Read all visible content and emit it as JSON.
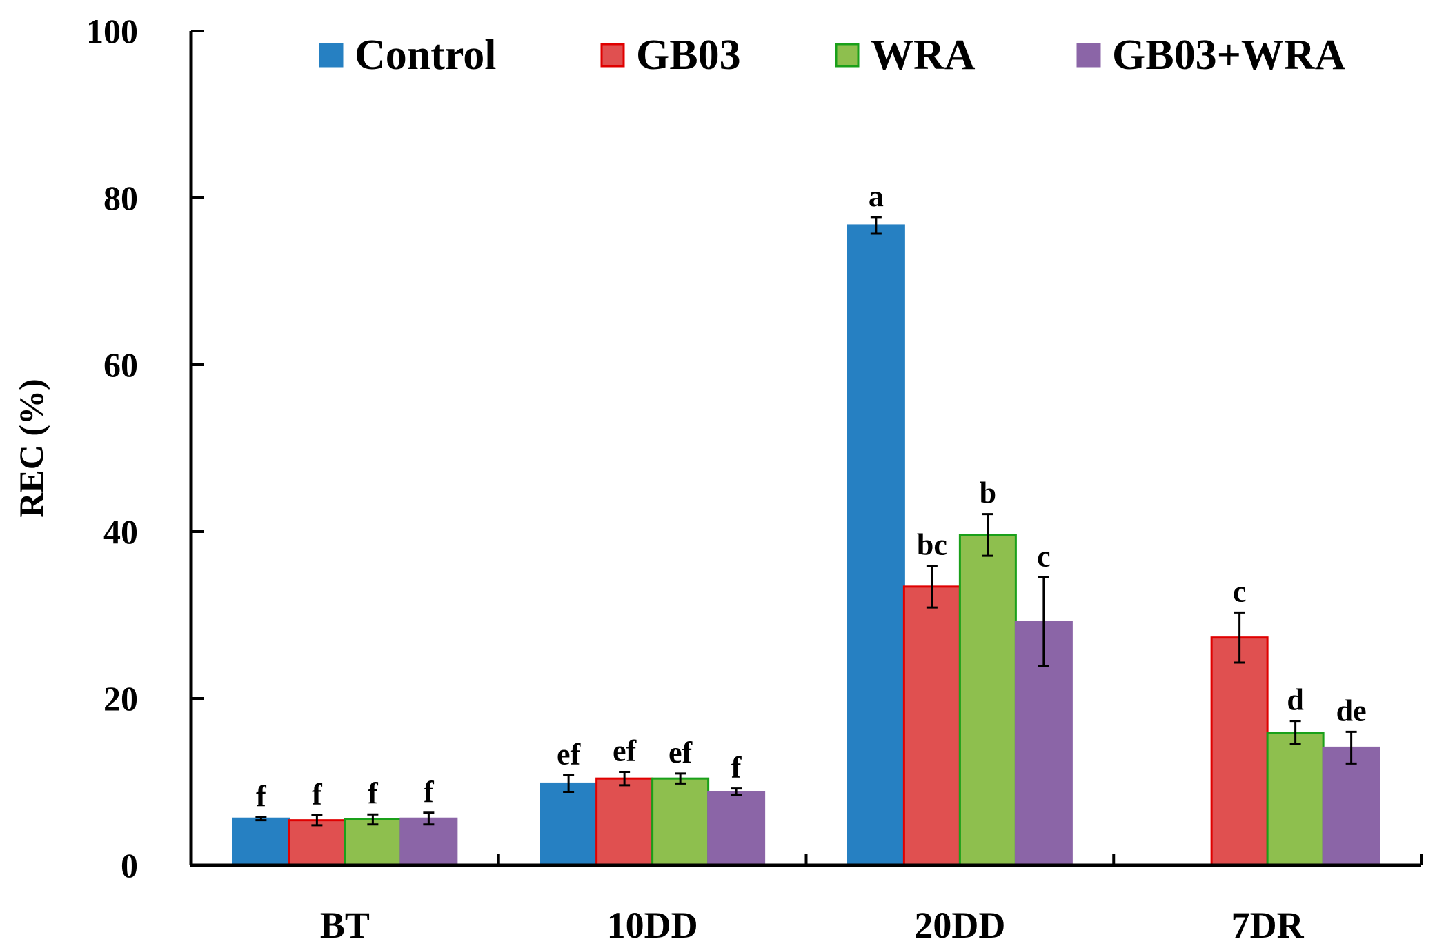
{
  "chart_data": {
    "type": "bar",
    "title": "",
    "xlabel": "",
    "ylabel": "REC (%)",
    "ylim": [
      0,
      100
    ],
    "yticks": [
      "0",
      "20",
      "40",
      "60",
      "80",
      "100"
    ],
    "categories": [
      "BT",
      "10DD",
      "20DD",
      "7DR"
    ],
    "legend_position": "top",
    "series": [
      {
        "name": "Control",
        "color": "#2680c2",
        "edge": "#2680c2",
        "values": [
          5.6,
          9.8,
          76.7,
          null
        ],
        "errors": [
          0.2,
          1.0,
          1.0,
          null
        ],
        "labels": [
          "f",
          "ef",
          "a",
          ""
        ]
      },
      {
        "name": "GB03",
        "color": "#e05050",
        "edge": "#e00000",
        "values": [
          5.4,
          10.4,
          33.4,
          27.3
        ],
        "errors": [
          0.6,
          0.8,
          2.5,
          3.0
        ],
        "labels": [
          "f",
          "ef",
          "bc",
          "c"
        ]
      },
      {
        "name": "WRA",
        "color": "#8ebf4e",
        "edge": "#1aa01a",
        "values": [
          5.5,
          10.4,
          39.6,
          15.9
        ],
        "errors": [
          0.6,
          0.6,
          2.5,
          1.4
        ],
        "labels": [
          "f",
          "ef",
          "b",
          "d"
        ]
      },
      {
        "name": "GB03+WRA",
        "color": "#8b65a7",
        "edge": "#8b65a7",
        "values": [
          5.6,
          8.8,
          29.2,
          14.1
        ],
        "errors": [
          0.7,
          0.4,
          5.3,
          1.9
        ],
        "labels": [
          "f",
          "f",
          "c",
          "de"
        ]
      }
    ]
  }
}
